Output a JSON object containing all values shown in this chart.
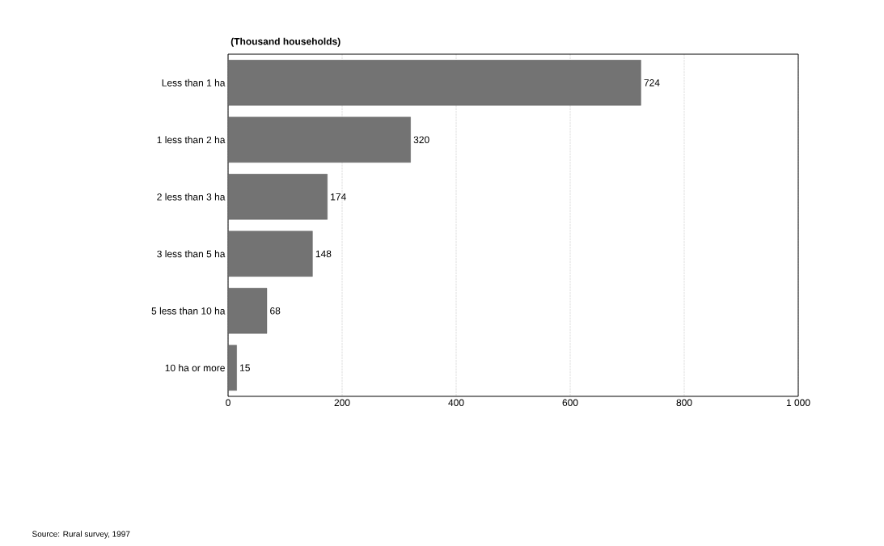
{
  "chart_data": {
    "type": "bar",
    "orientation": "horizontal",
    "title": "(Thousand households)",
    "categories": [
      "Less than 1 ha",
      "1 less than 2 ha",
      "2 less than 3 ha",
      "3 less than 5 ha",
      "5 less than 10 ha",
      "10 ha or more"
    ],
    "values": [
      724,
      320,
      174,
      148,
      68,
      15
    ],
    "color": "#737373",
    "xlim": [
      0,
      1000
    ],
    "xticks": [
      0,
      200,
      400,
      600,
      800,
      {
        "value": 1000,
        "label": "1 000"
      }
    ],
    "grid": "x",
    "data_labels": true,
    "annotations": [
      "Source:  Rural survey, 1997"
    ]
  }
}
